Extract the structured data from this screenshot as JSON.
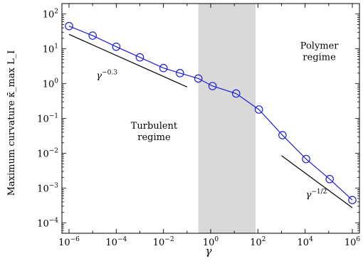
{
  "chart_data": {
    "type": "line",
    "xscale": "log",
    "yscale": "log",
    "xlim": [
      5e-07,
      2000000.0
    ],
    "ylim": [
      5e-05,
      200
    ],
    "xlabel": "γ",
    "ylabel": "Maximum curvature κ̄_max L_I",
    "x_ticks": [
      {
        "base": "10",
        "exp": "−6",
        "value": 1e-06
      },
      {
        "base": "10",
        "exp": "−4",
        "value": 0.0001
      },
      {
        "base": "10",
        "exp": "−2",
        "value": 0.01
      },
      {
        "base": "10",
        "exp": "0",
        "value": 1
      },
      {
        "base": "10",
        "exp": "2",
        "value": 100.0
      },
      {
        "base": "10",
        "exp": "4",
        "value": 10000.0
      },
      {
        "base": "10",
        "exp": "6",
        "value": 1000000.0
      }
    ],
    "y_ticks": [
      {
        "base": "10",
        "exp": "−4",
        "value": 0.0001
      },
      {
        "base": "10",
        "exp": "−3",
        "value": 0.001
      },
      {
        "base": "10",
        "exp": "−2",
        "value": 0.01
      },
      {
        "base": "10",
        "exp": "−1",
        "value": 0.1
      },
      {
        "base": "10",
        "exp": "0",
        "value": 1
      },
      {
        "base": "10",
        "exp": "1",
        "value": 10
      },
      {
        "base": "10",
        "exp": "2",
        "value": 100
      }
    ],
    "shaded_region": {
      "x": [
        0.3,
        80
      ],
      "color": "#d9d9d9"
    },
    "series": [
      {
        "color": "#1f1fd6",
        "marker": "open-circle",
        "points": [
          {
            "x": 1e-06,
            "y": 45
          },
          {
            "x": 1e-05,
            "y": 24
          },
          {
            "x": 0.0001,
            "y": 11.5
          },
          {
            "x": 0.001,
            "y": 5.7
          },
          {
            "x": 0.01,
            "y": 2.8
          },
          {
            "x": 0.05,
            "y": 2.0
          },
          {
            "x": 0.3,
            "y": 1.4
          },
          {
            "x": 1.2,
            "y": 0.85
          },
          {
            "x": 12,
            "y": 0.52
          },
          {
            "x": 110,
            "y": 0.18
          },
          {
            "x": 1100,
            "y": 0.033
          },
          {
            "x": 11000,
            "y": 0.0068
          },
          {
            "x": 110000,
            "y": 0.0018
          },
          {
            "x": 1000000,
            "y": 0.00045
          }
        ]
      }
    ],
    "reference_lines": [
      {
        "from": {
          "x": 1e-06,
          "y": 26
        },
        "to": {
          "x": 0.1,
          "y": 0.8
        },
        "label_base": "γ",
        "label_exp": "−0.3",
        "label_at": {
          "x": 4e-05,
          "y": 1.4
        }
      },
      {
        "from": {
          "x": 1000,
          "y": 0.0085
        },
        "to": {
          "x": 1000000,
          "y": 0.00027
        },
        "label_base": "γ",
        "label_exp": "−1/2",
        "label_at": {
          "x": 30000,
          "y": 0.00052
        }
      }
    ],
    "annotations": [
      {
        "lines": [
          "Turbulent",
          "regime"
        ],
        "at": {
          "x": 0.004,
          "y": 0.05
        }
      },
      {
        "lines": [
          "Polymer",
          "regime"
        ],
        "at": {
          "x": 40000,
          "y": 10
        }
      }
    ]
  }
}
